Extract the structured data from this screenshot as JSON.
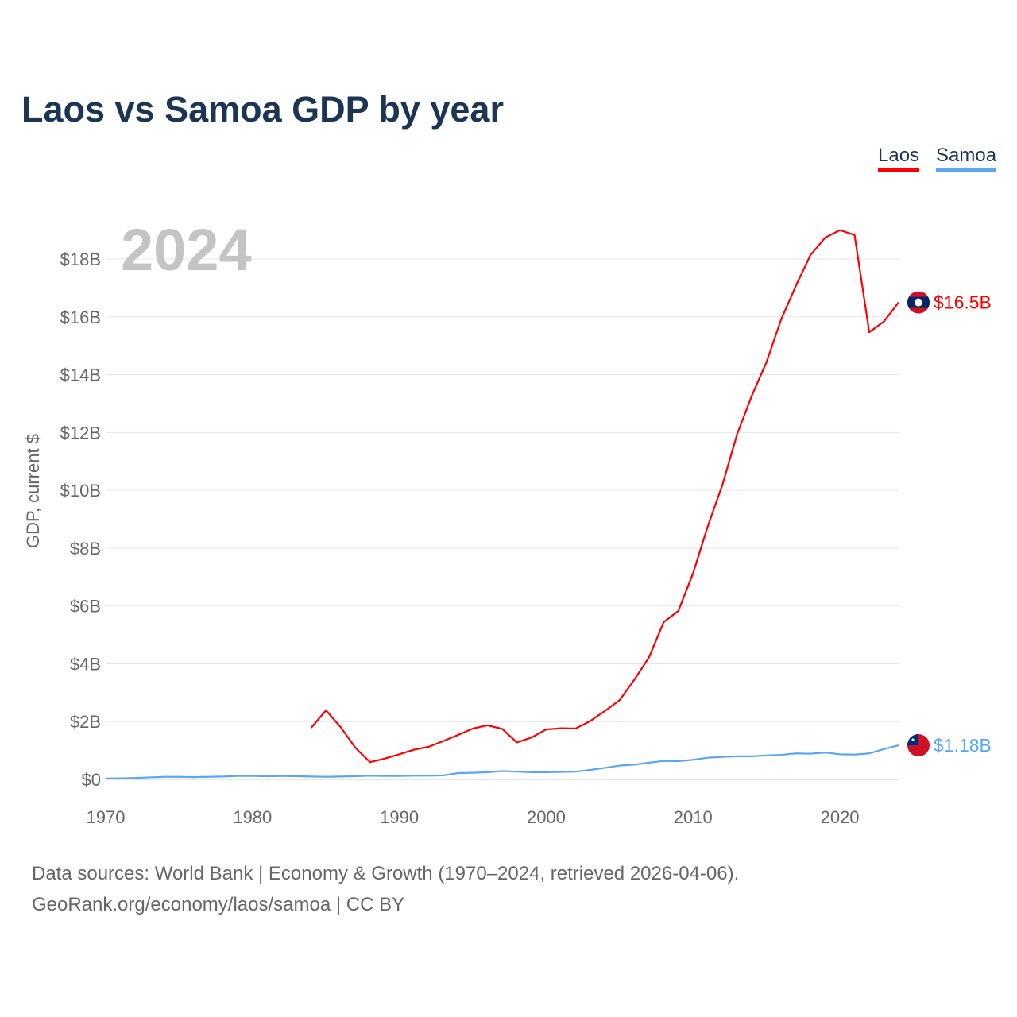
{
  "title": "Laos vs Samoa GDP by year",
  "year_label": "2024",
  "footer": {
    "line1": "Data sources: World Bank | Economy & Growth (1970–2024, retrieved 2026-04-06).",
    "line2": "GeoRank.org/economy/laos/samoa | CC BY"
  },
  "chart_data": {
    "type": "line",
    "title": "Laos vs Samoa GDP by year",
    "xlabel": "",
    "ylabel": "GDP, current $",
    "xlim": [
      1970,
      2024
    ],
    "ylim": [
      0,
      19
    ],
    "x_ticks": [
      1970,
      1980,
      1990,
      2000,
      2010,
      2020
    ],
    "y_ticks": [
      0,
      2,
      4,
      6,
      8,
      10,
      12,
      14,
      16,
      18
    ],
    "y_tick_labels": [
      "$0",
      "$2B",
      "$4B",
      "$6B",
      "$8B",
      "$10B",
      "$12B",
      "$14B",
      "$16B",
      "$18B"
    ],
    "grid": true,
    "legend_position": "top-right",
    "series": [
      {
        "name": "Laos",
        "color": "#ff0000",
        "end_label": "$16.5B",
        "flag": "laos-flag",
        "x": [
          1984,
          1985,
          1986,
          1987,
          1988,
          1989,
          1990,
          1991,
          1992,
          1993,
          1994,
          1995,
          1996,
          1997,
          1998,
          1999,
          2000,
          2001,
          2002,
          2003,
          2004,
          2005,
          2006,
          2007,
          2008,
          2009,
          2010,
          2011,
          2012,
          2013,
          2014,
          2015,
          2016,
          2017,
          2018,
          2019,
          2020,
          2021,
          2022,
          2023,
          2024
        ],
        "values": [
          1.79,
          2.39,
          1.81,
          1.1,
          0.6,
          0.72,
          0.87,
          1.03,
          1.13,
          1.33,
          1.54,
          1.76,
          1.87,
          1.75,
          1.28,
          1.45,
          1.73,
          1.77,
          1.76,
          2.02,
          2.37,
          2.74,
          3.45,
          4.22,
          5.44,
          5.83,
          7.13,
          8.75,
          10.19,
          11.94,
          13.27,
          14.43,
          15.91,
          17.07,
          18.14,
          18.74,
          19.0,
          18.83,
          15.47,
          15.84,
          16.5
        ]
      },
      {
        "name": "Samoa",
        "color": "#5aa7f0",
        "end_label": "$1.18B",
        "flag": "samoa-flag",
        "x": [
          1970,
          1971,
          1972,
          1973,
          1974,
          1975,
          1976,
          1977,
          1978,
          1979,
          1980,
          1981,
          1982,
          1983,
          1984,
          1985,
          1986,
          1987,
          1988,
          1989,
          1990,
          1991,
          1992,
          1993,
          1994,
          1995,
          1996,
          1997,
          1998,
          1999,
          2000,
          2001,
          2002,
          2003,
          2004,
          2005,
          2006,
          2007,
          2008,
          2009,
          2010,
          2011,
          2012,
          2013,
          2014,
          2015,
          2016,
          2017,
          2018,
          2019,
          2020,
          2021,
          2022,
          2023,
          2024
        ],
        "values": [
          0.03,
          0.04,
          0.05,
          0.07,
          0.09,
          0.09,
          0.08,
          0.09,
          0.1,
          0.12,
          0.12,
          0.11,
          0.12,
          0.11,
          0.1,
          0.09,
          0.1,
          0.11,
          0.13,
          0.12,
          0.12,
          0.13,
          0.13,
          0.14,
          0.22,
          0.23,
          0.25,
          0.29,
          0.27,
          0.25,
          0.25,
          0.26,
          0.27,
          0.33,
          0.4,
          0.48,
          0.51,
          0.58,
          0.64,
          0.63,
          0.68,
          0.75,
          0.78,
          0.8,
          0.8,
          0.83,
          0.85,
          0.9,
          0.89,
          0.93,
          0.87,
          0.86,
          0.9,
          1.05,
          1.18
        ]
      }
    ]
  }
}
